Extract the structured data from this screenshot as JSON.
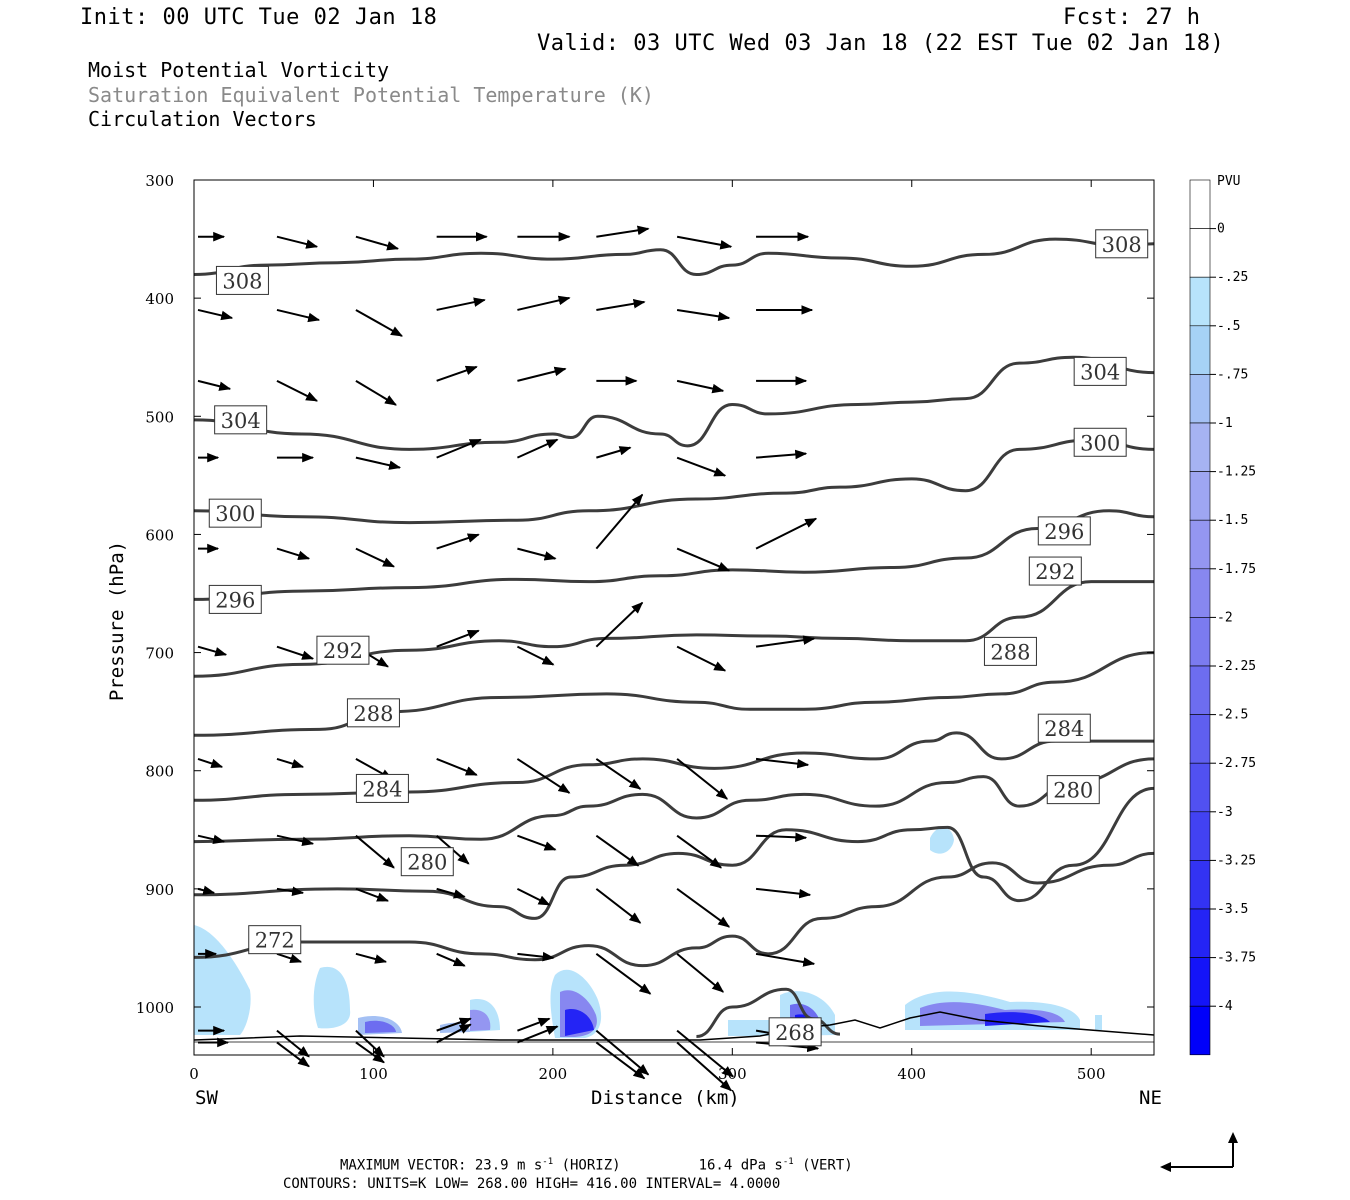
{
  "header": {
    "init": "Init: 00 UTC Tue 02 Jan 18",
    "fcst": "Fcst:   27 h",
    "valid": "Valid: 03 UTC Wed 03 Jan 18 (22 EST Tue 02 Jan 18)",
    "field1": "Moist Potential Vorticity",
    "field2": "Saturation Equivalent Potential Temperature (K)",
    "field3": "Circulation Vectors"
  },
  "footer": {
    "max_vector_prefix": "MAXIMUM VECTOR:  23.9 m s",
    "horiz_suffix": " (HORIZ)",
    "vert_prefix": "16.4 dPa s",
    "vert_suffix": " (VERT)",
    "exp": "-1",
    "contours": "CONTOURS:  UNITS=K  LOW=  268.00        HIGH=  416.00        INTERVAL=     4.0000"
  },
  "chart_data": {
    "type": "cross-section",
    "xlabel": "Distance (km)",
    "ylabel": "Pressure (hPa)",
    "xlim": [
      0,
      535
    ],
    "ylim": [
      1038,
      300
    ],
    "x_ticks": [
      0,
      100,
      200,
      300,
      400,
      500
    ],
    "y_ticks": [
      300,
      400,
      500,
      600,
      700,
      800,
      900,
      1000
    ],
    "left_end_label": "SW",
    "right_end_label": "NE",
    "colorbar": {
      "unit": "PVU",
      "labels": [
        "0",
        "-.25",
        "-.5",
        "-.75",
        "-1",
        "-1.25",
        "-1.5",
        "-1.75",
        "-2",
        "-2.25",
        "-2.5",
        "-2.75",
        "-3",
        "-3.25",
        "-3.5",
        "-3.75",
        "-4"
      ],
      "colors": [
        "#ffffff",
        "#ffffff",
        "#b7e3fb",
        "#a6d2f6",
        "#a4c0f4",
        "#a6b3f2",
        "#9ea6f2",
        "#9496f1",
        "#8787f0",
        "#7b7bf0",
        "#6d6df0",
        "#5f5ff0",
        "#5151f1",
        "#4242f2",
        "#3333f3",
        "#2424f5",
        "#1414f8",
        "#0000fa"
      ]
    },
    "contours_theta_e": [
      {
        "level": 308,
        "label": "308",
        "label_at": [
          [
            27,
            385
          ],
          [
            517,
            354
          ]
        ],
        "points": [
          [
            0,
            380
          ],
          [
            40,
            372
          ],
          [
            80,
            370
          ],
          [
            120,
            367
          ],
          [
            160,
            362
          ],
          [
            200,
            367
          ],
          [
            240,
            363
          ],
          [
            260,
            359
          ],
          [
            280,
            380
          ],
          [
            300,
            372
          ],
          [
            320,
            362
          ],
          [
            360,
            366
          ],
          [
            400,
            373
          ],
          [
            440,
            363
          ],
          [
            480,
            350
          ],
          [
            520,
            356
          ],
          [
            535,
            354
          ]
        ]
      },
      {
        "level": 304,
        "label": "304",
        "label_at": [
          [
            26,
            503
          ],
          [
            505,
            462
          ]
        ],
        "points": [
          [
            0,
            503
          ],
          [
            60,
            515
          ],
          [
            120,
            528
          ],
          [
            170,
            522
          ],
          [
            200,
            515
          ],
          [
            210,
            518
          ],
          [
            225,
            500
          ],
          [
            260,
            515
          ],
          [
            275,
            525
          ],
          [
            300,
            490
          ],
          [
            320,
            498
          ],
          [
            370,
            490
          ],
          [
            400,
            488
          ],
          [
            430,
            485
          ],
          [
            460,
            455
          ],
          [
            490,
            450
          ],
          [
            535,
            463
          ]
        ]
      },
      {
        "level": 300,
        "label": "300",
        "label_at": [
          [
            23,
            582
          ],
          [
            505,
            522
          ]
        ],
        "points": [
          [
            0,
            580
          ],
          [
            60,
            585
          ],
          [
            120,
            590
          ],
          [
            180,
            588
          ],
          [
            220,
            580
          ],
          [
            280,
            570
          ],
          [
            330,
            565
          ],
          [
            360,
            560
          ],
          [
            400,
            553
          ],
          [
            430,
            563
          ],
          [
            460,
            528
          ],
          [
            500,
            520
          ],
          [
            535,
            528
          ]
        ]
      },
      {
        "level": 296,
        "label": "296",
        "label_at": [
          [
            23,
            655
          ],
          [
            485,
            597
          ]
        ],
        "points": [
          [
            0,
            655
          ],
          [
            60,
            648
          ],
          [
            120,
            645
          ],
          [
            180,
            638
          ],
          [
            220,
            640
          ],
          [
            260,
            635
          ],
          [
            300,
            630
          ],
          [
            340,
            632
          ],
          [
            390,
            628
          ],
          [
            430,
            620
          ],
          [
            470,
            595
          ],
          [
            510,
            580
          ],
          [
            535,
            585
          ]
        ]
      },
      {
        "level": 292,
        "label": "292",
        "label_at": [
          [
            83,
            698
          ],
          [
            480,
            631
          ]
        ],
        "points": [
          [
            0,
            720
          ],
          [
            60,
            710
          ],
          [
            120,
            698
          ],
          [
            170,
            690
          ],
          [
            200,
            695
          ],
          [
            230,
            688
          ],
          [
            280,
            685
          ],
          [
            320,
            686
          ],
          [
            360,
            688
          ],
          [
            400,
            690
          ],
          [
            430,
            690
          ],
          [
            460,
            670
          ],
          [
            500,
            640
          ],
          [
            535,
            640
          ]
        ]
      },
      {
        "level": 288,
        "label": "288",
        "label_at": [
          [
            100,
            751
          ],
          [
            455,
            699
          ]
        ],
        "points": [
          [
            0,
            770
          ],
          [
            70,
            765
          ],
          [
            110,
            750
          ],
          [
            170,
            738
          ],
          [
            230,
            735
          ],
          [
            280,
            742
          ],
          [
            310,
            748
          ],
          [
            340,
            748
          ],
          [
            380,
            742
          ],
          [
            420,
            738
          ],
          [
            450,
            735
          ],
          [
            480,
            725
          ],
          [
            535,
            700
          ]
        ]
      },
      {
        "level": 284,
        "label": "284",
        "label_at": [
          [
            105,
            815
          ],
          [
            485,
            764
          ]
        ],
        "points": [
          [
            0,
            825
          ],
          [
            60,
            820
          ],
          [
            120,
            818
          ],
          [
            180,
            810
          ],
          [
            220,
            795
          ],
          [
            250,
            790
          ],
          [
            290,
            798
          ],
          [
            340,
            785
          ],
          [
            380,
            790
          ],
          [
            410,
            775
          ],
          [
            425,
            768
          ],
          [
            450,
            790
          ],
          [
            480,
            775
          ],
          [
            535,
            775
          ]
        ]
      },
      {
        "level": 280,
        "label": "280",
        "label_at": [
          [
            130,
            877
          ],
          [
            490,
            816
          ]
        ],
        "points": [
          [
            0,
            860
          ],
          [
            60,
            858
          ],
          [
            120,
            855
          ],
          [
            160,
            858
          ],
          [
            200,
            838
          ],
          [
            220,
            830
          ],
          [
            250,
            820
          ],
          [
            280,
            840
          ],
          [
            310,
            825
          ],
          [
            340,
            820
          ],
          [
            380,
            830
          ],
          [
            420,
            810
          ],
          [
            440,
            805
          ],
          [
            460,
            830
          ],
          [
            490,
            810
          ],
          [
            535,
            790
          ]
        ]
      },
      {
        "level": 276,
        "label": "",
        "label_at": [],
        "points": [
          [
            0,
            905
          ],
          [
            80,
            900
          ],
          [
            130,
            902
          ],
          [
            170,
            915
          ],
          [
            190,
            925
          ],
          [
            210,
            890
          ],
          [
            240,
            880
          ],
          [
            270,
            870
          ],
          [
            300,
            880
          ],
          [
            330,
            850
          ],
          [
            370,
            860
          ],
          [
            400,
            850
          ],
          [
            420,
            848
          ],
          [
            440,
            890
          ],
          [
            460,
            910
          ],
          [
            490,
            880
          ],
          [
            535,
            815
          ]
        ]
      },
      {
        "level": 272,
        "label": "272",
        "label_at": [
          [
            45,
            943
          ]
        ],
        "points": [
          [
            0,
            958
          ],
          [
            60,
            945
          ],
          [
            120,
            945
          ],
          [
            160,
            955
          ],
          [
            190,
            960
          ],
          [
            220,
            948
          ],
          [
            250,
            965
          ],
          [
            280,
            950
          ],
          [
            300,
            940
          ],
          [
            320,
            955
          ],
          [
            350,
            925
          ],
          [
            380,
            915
          ],
          [
            420,
            890
          ],
          [
            445,
            878
          ],
          [
            470,
            895
          ],
          [
            510,
            880
          ],
          [
            535,
            870
          ]
        ]
      },
      {
        "level": 268,
        "label": "268",
        "label_at": [
          [
            335,
            1021
          ]
        ],
        "points": [
          [
            280,
            1025
          ],
          [
            300,
            1000
          ],
          [
            330,
            985
          ],
          [
            345,
            1010
          ],
          [
            360,
            1023
          ]
        ]
      }
    ],
    "circulation_vectors": [
      [
        300,
        0,
        1.3,
        0
      ],
      [
        355,
        0,
        1.7,
        -0.4
      ],
      [
        410,
        0,
        1.6,
        -0.4
      ],
      [
        467,
        0,
        1.0,
        0
      ],
      [
        535,
        0,
        1.0,
        0
      ],
      [
        612,
        0,
        1.4,
        -0.4
      ],
      [
        695,
        0,
        1.2,
        -0.4
      ],
      [
        790,
        0,
        1.3,
        -0.3
      ],
      [
        855,
        0,
        0.8,
        -0.2
      ],
      [
        900,
        0,
        0.9,
        0
      ],
      [
        955,
        0,
        1.3,
        0
      ],
      [
        1020,
        0,
        1.5,
        0
      ],
      [
        300,
        44,
        2.0,
        -0.5
      ],
      [
        355,
        44,
        2.1,
        -0.5
      ],
      [
        410,
        44,
        2.0,
        -1.0
      ],
      [
        467,
        44,
        1.8,
        0
      ],
      [
        535,
        44,
        1.6,
        -0.5
      ],
      [
        612,
        44,
        1.8,
        -0.6
      ],
      [
        695,
        44,
        1.3,
        -0.4
      ],
      [
        790,
        44,
        1.8,
        -0.4
      ],
      [
        855,
        44,
        1.3,
        -0.2
      ],
      [
        900,
        44,
        1.2,
        -0.4
      ],
      [
        955,
        44,
        1.6,
        -1.3
      ],
      [
        1020,
        44,
        1.6,
        -1.2
      ],
      [
        300,
        88,
        2.1,
        -0.6
      ],
      [
        355,
        88,
        2.3,
        -1.3
      ],
      [
        410,
        88,
        2.0,
        -1.2
      ],
      [
        467,
        88,
        2.2,
        -0.5
      ],
      [
        535,
        88,
        1.9,
        -0.9
      ],
      [
        612,
        88,
        1.6,
        -1.0
      ],
      [
        695,
        88,
        1.8,
        -1.0
      ],
      [
        790,
        88,
        1.9,
        -1.6
      ],
      [
        855,
        88,
        1.6,
        -0.6
      ],
      [
        900,
        88,
        1.5,
        -0.4
      ],
      [
        955,
        88,
        1.4,
        -1.3
      ],
      [
        1020,
        88,
        1.4,
        -1.0
      ],
      [
        300,
        133,
        2.5,
        0
      ],
      [
        355,
        133,
        2.4,
        0.5
      ],
      [
        410,
        133,
        2.0,
        0.7
      ],
      [
        467,
        133,
        2.2,
        0.9
      ],
      [
        535,
        133,
        2.1,
        0.7
      ],
      [
        612,
        133,
        2.1,
        0.8
      ],
      [
        695,
        133,
        2.0,
        -0.8
      ],
      [
        790,
        133,
        1.6,
        -1.4
      ],
      [
        855,
        133,
        1.4,
        -0.4
      ],
      [
        900,
        133,
        1.4,
        -0.6
      ],
      [
        955,
        133,
        1.7,
        0.6
      ],
      [
        1020,
        133,
        1.7,
        0.9
      ],
      [
        300,
        178,
        2.6,
        0
      ],
      [
        355,
        178,
        2.6,
        0.6
      ],
      [
        410,
        178,
        2.4,
        0.6
      ],
      [
        467,
        178,
        2.0,
        0.9
      ],
      [
        535,
        178,
        1.9,
        -0.5
      ],
      [
        612,
        178,
        1.8,
        -0.9
      ],
      [
        695,
        178,
        2.6,
        -1.7
      ],
      [
        790,
        178,
        1.9,
        -0.7
      ],
      [
        855,
        178,
        1.6,
        -0.8
      ],
      [
        900,
        178,
        1.8,
        -0.2
      ],
      [
        955,
        178,
        1.6,
        0.6
      ],
      [
        1020,
        178,
        2.0,
        0.8
      ],
      [
        300,
        222,
        2.6,
        0.4
      ],
      [
        355,
        222,
        2.4,
        0.4
      ],
      [
        410,
        222,
        2.0,
        0
      ],
      [
        467,
        222,
        1.7,
        0.5
      ],
      [
        535,
        222,
        2.3,
        2.7
      ],
      [
        612,
        222,
        2.3,
        2.2
      ],
      [
        695,
        222,
        2.2,
        -1.5
      ],
      [
        790,
        222,
        2.1,
        -1.5
      ],
      [
        855,
        222,
        2.2,
        -1.7
      ],
      [
        900,
        222,
        2.7,
        -2.0
      ],
      [
        955,
        222,
        2.6,
        -2.2
      ],
      [
        1020,
        222,
        2.4,
        -1.8
      ],
      [
        300,
        267,
        2.7,
        -0.5
      ],
      [
        355,
        267,
        2.6,
        -0.4
      ],
      [
        410,
        267,
        2.3,
        -0.5
      ],
      [
        467,
        267,
        2.4,
        -0.9
      ],
      [
        535,
        267,
        2.6,
        -1.1
      ],
      [
        612,
        267,
        2.4,
        -1.2
      ],
      [
        695,
        267,
        2.5,
        -2.0
      ],
      [
        790,
        267,
        2.2,
        -1.6
      ],
      [
        855,
        267,
        2.6,
        -1.9
      ],
      [
        900,
        267,
        2.3,
        -1.9
      ],
      [
        955,
        267,
        2.8,
        -2.3
      ],
      [
        1020,
        267,
        2.7,
        -2.4
      ],
      [
        300,
        311,
        2.6,
        0
      ],
      [
        355,
        311,
        2.8,
        0
      ],
      [
        410,
        311,
        2.5,
        0
      ],
      [
        467,
        311,
        2.5,
        0.2
      ],
      [
        535,
        311,
        3.0,
        1.5
      ],
      [
        612,
        311,
        2.9,
        0.4
      ],
      [
        695,
        311,
        2.6,
        -0.3
      ],
      [
        790,
        311,
        2.5,
        -0.1
      ],
      [
        855,
        311,
        2.7,
        -0.3
      ],
      [
        900,
        311,
        2.9,
        -0.5
      ],
      [
        955,
        311,
        2.9,
        -0.5
      ],
      [
        1020,
        311,
        3.1,
        -0.3
      ]
    ],
    "pv_shading_note": "Moist PV shading mainly below 950 hPa, values 0 to -4 PVU"
  }
}
